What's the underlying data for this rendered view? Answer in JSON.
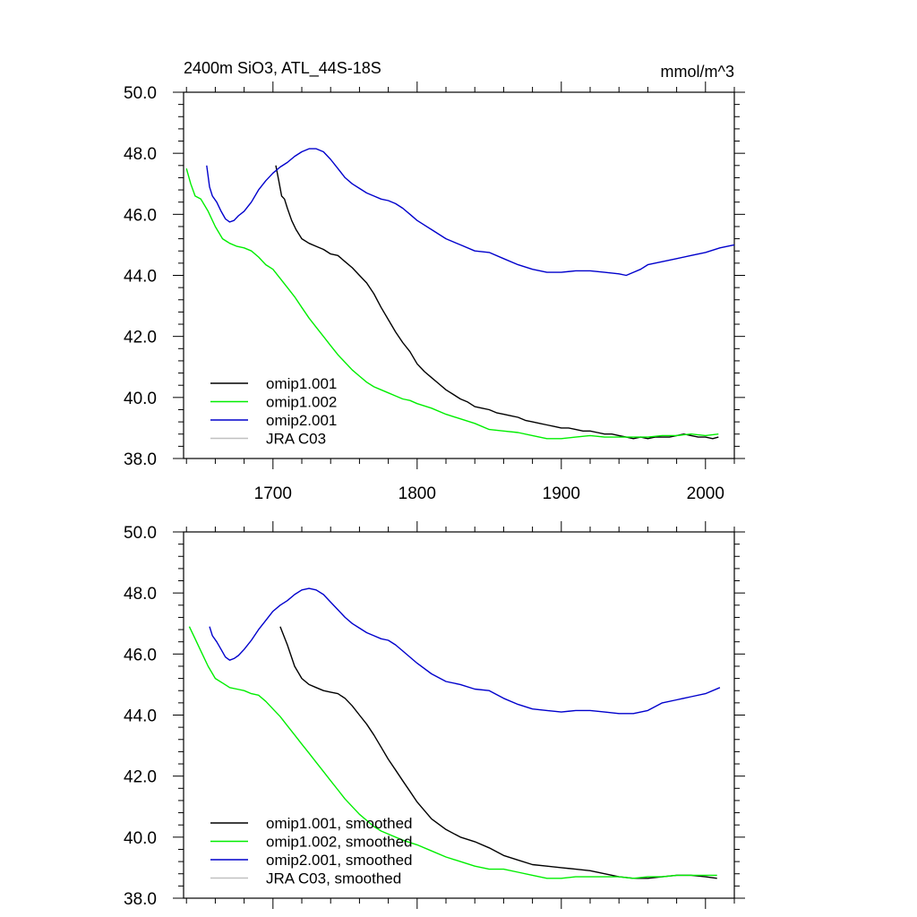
{
  "chart_data": [
    {
      "type": "line",
      "title": "2400m SiO3, ATL_44S-18S",
      "units": "mmol/m^3",
      "xlim": [
        1638,
        2020
      ],
      "ylim": [
        38.0,
        50.0
      ],
      "x_ticks": [
        "1700",
        "1800",
        "1900",
        "2000"
      ],
      "y_ticks": [
        "50.0",
        "48.0",
        "46.0",
        "44.0",
        "42.0",
        "40.0",
        "38.0"
      ],
      "legend_position": "bottom-left",
      "series": [
        {
          "name": "omip1.001",
          "color": "#000000",
          "x": [
            1702,
            1704,
            1706,
            1708,
            1710,
            1713,
            1716,
            1720,
            1725,
            1730,
            1735,
            1740,
            1745,
            1750,
            1755,
            1760,
            1765,
            1770,
            1775,
            1780,
            1785,
            1790,
            1795,
            1800,
            1805,
            1810,
            1815,
            1820,
            1825,
            1830,
            1835,
            1840,
            1845,
            1850,
            1855,
            1860,
            1865,
            1870,
            1875,
            1880,
            1885,
            1890,
            1895,
            1900,
            1905,
            1910,
            1915,
            1920,
            1925,
            1930,
            1935,
            1940,
            1945,
            1950,
            1955,
            1960,
            1965,
            1970,
            1975,
            1980,
            1985,
            1990,
            1995,
            2000,
            2005,
            2009
          ],
          "y": [
            47.6,
            47.1,
            46.6,
            46.5,
            46.2,
            45.8,
            45.5,
            45.2,
            45.05,
            44.95,
            44.85,
            44.7,
            44.65,
            44.45,
            44.25,
            44.0,
            43.75,
            43.4,
            42.95,
            42.55,
            42.15,
            41.8,
            41.5,
            41.1,
            40.85,
            40.65,
            40.45,
            40.25,
            40.1,
            39.95,
            39.85,
            39.7,
            39.65,
            39.6,
            39.5,
            39.45,
            39.4,
            39.35,
            39.25,
            39.2,
            39.15,
            39.1,
            39.05,
            39.0,
            39.0,
            38.95,
            38.9,
            38.9,
            38.85,
            38.8,
            38.8,
            38.75,
            38.7,
            38.65,
            38.7,
            38.65,
            38.7,
            38.7,
            38.7,
            38.75,
            38.8,
            38.75,
            38.7,
            38.7,
            38.65,
            38.7
          ]
        },
        {
          "name": "omip1.002",
          "color": "#00ee00",
          "x": [
            1640,
            1643,
            1646,
            1650,
            1655,
            1660,
            1665,
            1670,
            1675,
            1680,
            1685,
            1690,
            1695,
            1700,
            1705,
            1710,
            1715,
            1720,
            1725,
            1730,
            1735,
            1740,
            1745,
            1750,
            1755,
            1760,
            1765,
            1770,
            1775,
            1780,
            1785,
            1790,
            1795,
            1800,
            1810,
            1820,
            1830,
            1840,
            1850,
            1860,
            1870,
            1880,
            1890,
            1900,
            1910,
            1920,
            1930,
            1940,
            1950,
            1960,
            1970,
            1980,
            1990,
            2000,
            2009
          ],
          "y": [
            47.5,
            47.0,
            46.6,
            46.5,
            46.1,
            45.6,
            45.2,
            45.05,
            44.95,
            44.9,
            44.8,
            44.6,
            44.35,
            44.2,
            43.9,
            43.6,
            43.3,
            42.95,
            42.6,
            42.3,
            42.0,
            41.7,
            41.4,
            41.15,
            40.9,
            40.7,
            40.5,
            40.35,
            40.25,
            40.15,
            40.05,
            39.95,
            39.9,
            39.8,
            39.65,
            39.45,
            39.3,
            39.15,
            38.95,
            38.9,
            38.85,
            38.75,
            38.65,
            38.65,
            38.7,
            38.75,
            38.7,
            38.7,
            38.7,
            38.7,
            38.75,
            38.75,
            38.8,
            38.75,
            38.8
          ]
        },
        {
          "name": "omip2.001",
          "color": "#0000cc",
          "x": [
            1654,
            1656,
            1658,
            1661,
            1664,
            1667,
            1670,
            1673,
            1676,
            1680,
            1685,
            1690,
            1695,
            1700,
            1705,
            1710,
            1715,
            1720,
            1725,
            1730,
            1735,
            1740,
            1745,
            1750,
            1755,
            1760,
            1765,
            1770,
            1775,
            1780,
            1785,
            1790,
            1795,
            1800,
            1810,
            1820,
            1830,
            1840,
            1850,
            1860,
            1870,
            1880,
            1890,
            1900,
            1910,
            1920,
            1930,
            1940,
            1945,
            1950,
            1955,
            1960,
            1970,
            1980,
            1990,
            2000,
            2010,
            2020
          ],
          "y": [
            47.6,
            46.9,
            46.6,
            46.4,
            46.1,
            45.85,
            45.75,
            45.8,
            45.95,
            46.1,
            46.4,
            46.8,
            47.1,
            47.35,
            47.55,
            47.7,
            47.9,
            48.05,
            48.15,
            48.15,
            48.05,
            47.8,
            47.5,
            47.2,
            47.0,
            46.85,
            46.7,
            46.6,
            46.5,
            46.45,
            46.35,
            46.2,
            46.0,
            45.8,
            45.5,
            45.2,
            45.0,
            44.8,
            44.75,
            44.55,
            44.35,
            44.2,
            44.1,
            44.1,
            44.15,
            44.15,
            44.1,
            44.05,
            44.0,
            44.1,
            44.2,
            44.35,
            44.45,
            44.55,
            44.65,
            44.75,
            44.9,
            45.0
          ]
        },
        {
          "name": "JRA C03",
          "color": "#c0c0c0",
          "x": [],
          "y": []
        }
      ]
    },
    {
      "type": "line",
      "xlim": [
        1638,
        2020
      ],
      "ylim": [
        38.0,
        50.0
      ],
      "y_ticks": [
        "50.0",
        "48.0",
        "46.0",
        "44.0",
        "42.0",
        "40.0",
        "38.0"
      ],
      "legend_position": "bottom-left",
      "series": [
        {
          "name": "omip1.001, smoothed",
          "color": "#000000",
          "x": [
            1705,
            1710,
            1715,
            1720,
            1725,
            1730,
            1735,
            1740,
            1745,
            1750,
            1755,
            1760,
            1765,
            1770,
            1775,
            1780,
            1785,
            1790,
            1795,
            1800,
            1810,
            1820,
            1830,
            1840,
            1850,
            1860,
            1870,
            1880,
            1890,
            1900,
            1910,
            1920,
            1930,
            1940,
            1950,
            1960,
            1970,
            1980,
            1990,
            2000,
            2008
          ],
          "y": [
            46.9,
            46.3,
            45.6,
            45.2,
            45.0,
            44.9,
            44.8,
            44.75,
            44.7,
            44.55,
            44.3,
            44.0,
            43.7,
            43.35,
            42.95,
            42.55,
            42.2,
            41.85,
            41.5,
            41.15,
            40.6,
            40.25,
            40.0,
            39.85,
            39.65,
            39.4,
            39.25,
            39.1,
            39.05,
            39.0,
            38.95,
            38.9,
            38.8,
            38.7,
            38.65,
            38.65,
            38.7,
            38.75,
            38.75,
            38.7,
            38.65
          ]
        },
        {
          "name": "omip1.002, smoothed",
          "color": "#00ee00",
          "x": [
            1642,
            1646,
            1650,
            1655,
            1660,
            1665,
            1670,
            1675,
            1680,
            1685,
            1690,
            1695,
            1700,
            1705,
            1710,
            1715,
            1720,
            1725,
            1730,
            1735,
            1740,
            1745,
            1750,
            1755,
            1760,
            1765,
            1770,
            1775,
            1780,
            1790,
            1800,
            1810,
            1820,
            1830,
            1840,
            1850,
            1860,
            1870,
            1880,
            1890,
            1900,
            1910,
            1920,
            1930,
            1940,
            1950,
            1960,
            1970,
            1980,
            1990,
            2000,
            2008
          ],
          "y": [
            46.9,
            46.5,
            46.1,
            45.6,
            45.2,
            45.05,
            44.9,
            44.85,
            44.8,
            44.7,
            44.65,
            44.45,
            44.2,
            43.95,
            43.65,
            43.35,
            43.05,
            42.75,
            42.45,
            42.15,
            41.85,
            41.55,
            41.25,
            41.0,
            40.75,
            40.55,
            40.35,
            40.2,
            40.1,
            39.9,
            39.75,
            39.55,
            39.35,
            39.2,
            39.05,
            38.95,
            38.95,
            38.85,
            38.75,
            38.65,
            38.65,
            38.7,
            38.7,
            38.7,
            38.7,
            38.65,
            38.7,
            38.7,
            38.75,
            38.75,
            38.75,
            38.75
          ]
        },
        {
          "name": "omip2.001, smoothed",
          "color": "#0000cc",
          "x": [
            1656,
            1658,
            1661,
            1664,
            1667,
            1670,
            1673,
            1676,
            1680,
            1685,
            1690,
            1695,
            1700,
            1705,
            1710,
            1715,
            1720,
            1725,
            1730,
            1735,
            1740,
            1745,
            1750,
            1755,
            1760,
            1765,
            1770,
            1775,
            1780,
            1785,
            1790,
            1800,
            1810,
            1820,
            1830,
            1840,
            1850,
            1860,
            1870,
            1880,
            1890,
            1900,
            1910,
            1920,
            1930,
            1940,
            1950,
            1960,
            1970,
            1980,
            1990,
            2000,
            2010
          ],
          "y": [
            46.9,
            46.6,
            46.4,
            46.15,
            45.9,
            45.8,
            45.85,
            45.95,
            46.15,
            46.45,
            46.8,
            47.1,
            47.4,
            47.6,
            47.75,
            47.95,
            48.1,
            48.15,
            48.1,
            47.95,
            47.7,
            47.45,
            47.2,
            47.0,
            46.85,
            46.7,
            46.6,
            46.5,
            46.45,
            46.3,
            46.1,
            45.7,
            45.35,
            45.1,
            45.0,
            44.85,
            44.8,
            44.55,
            44.35,
            44.2,
            44.15,
            44.1,
            44.15,
            44.15,
            44.1,
            44.05,
            44.05,
            44.15,
            44.4,
            44.5,
            44.6,
            44.7,
            44.9
          ]
        },
        {
          "name": "JRA C03, smoothed",
          "color": "#c0c0c0",
          "x": [],
          "y": []
        }
      ]
    }
  ]
}
